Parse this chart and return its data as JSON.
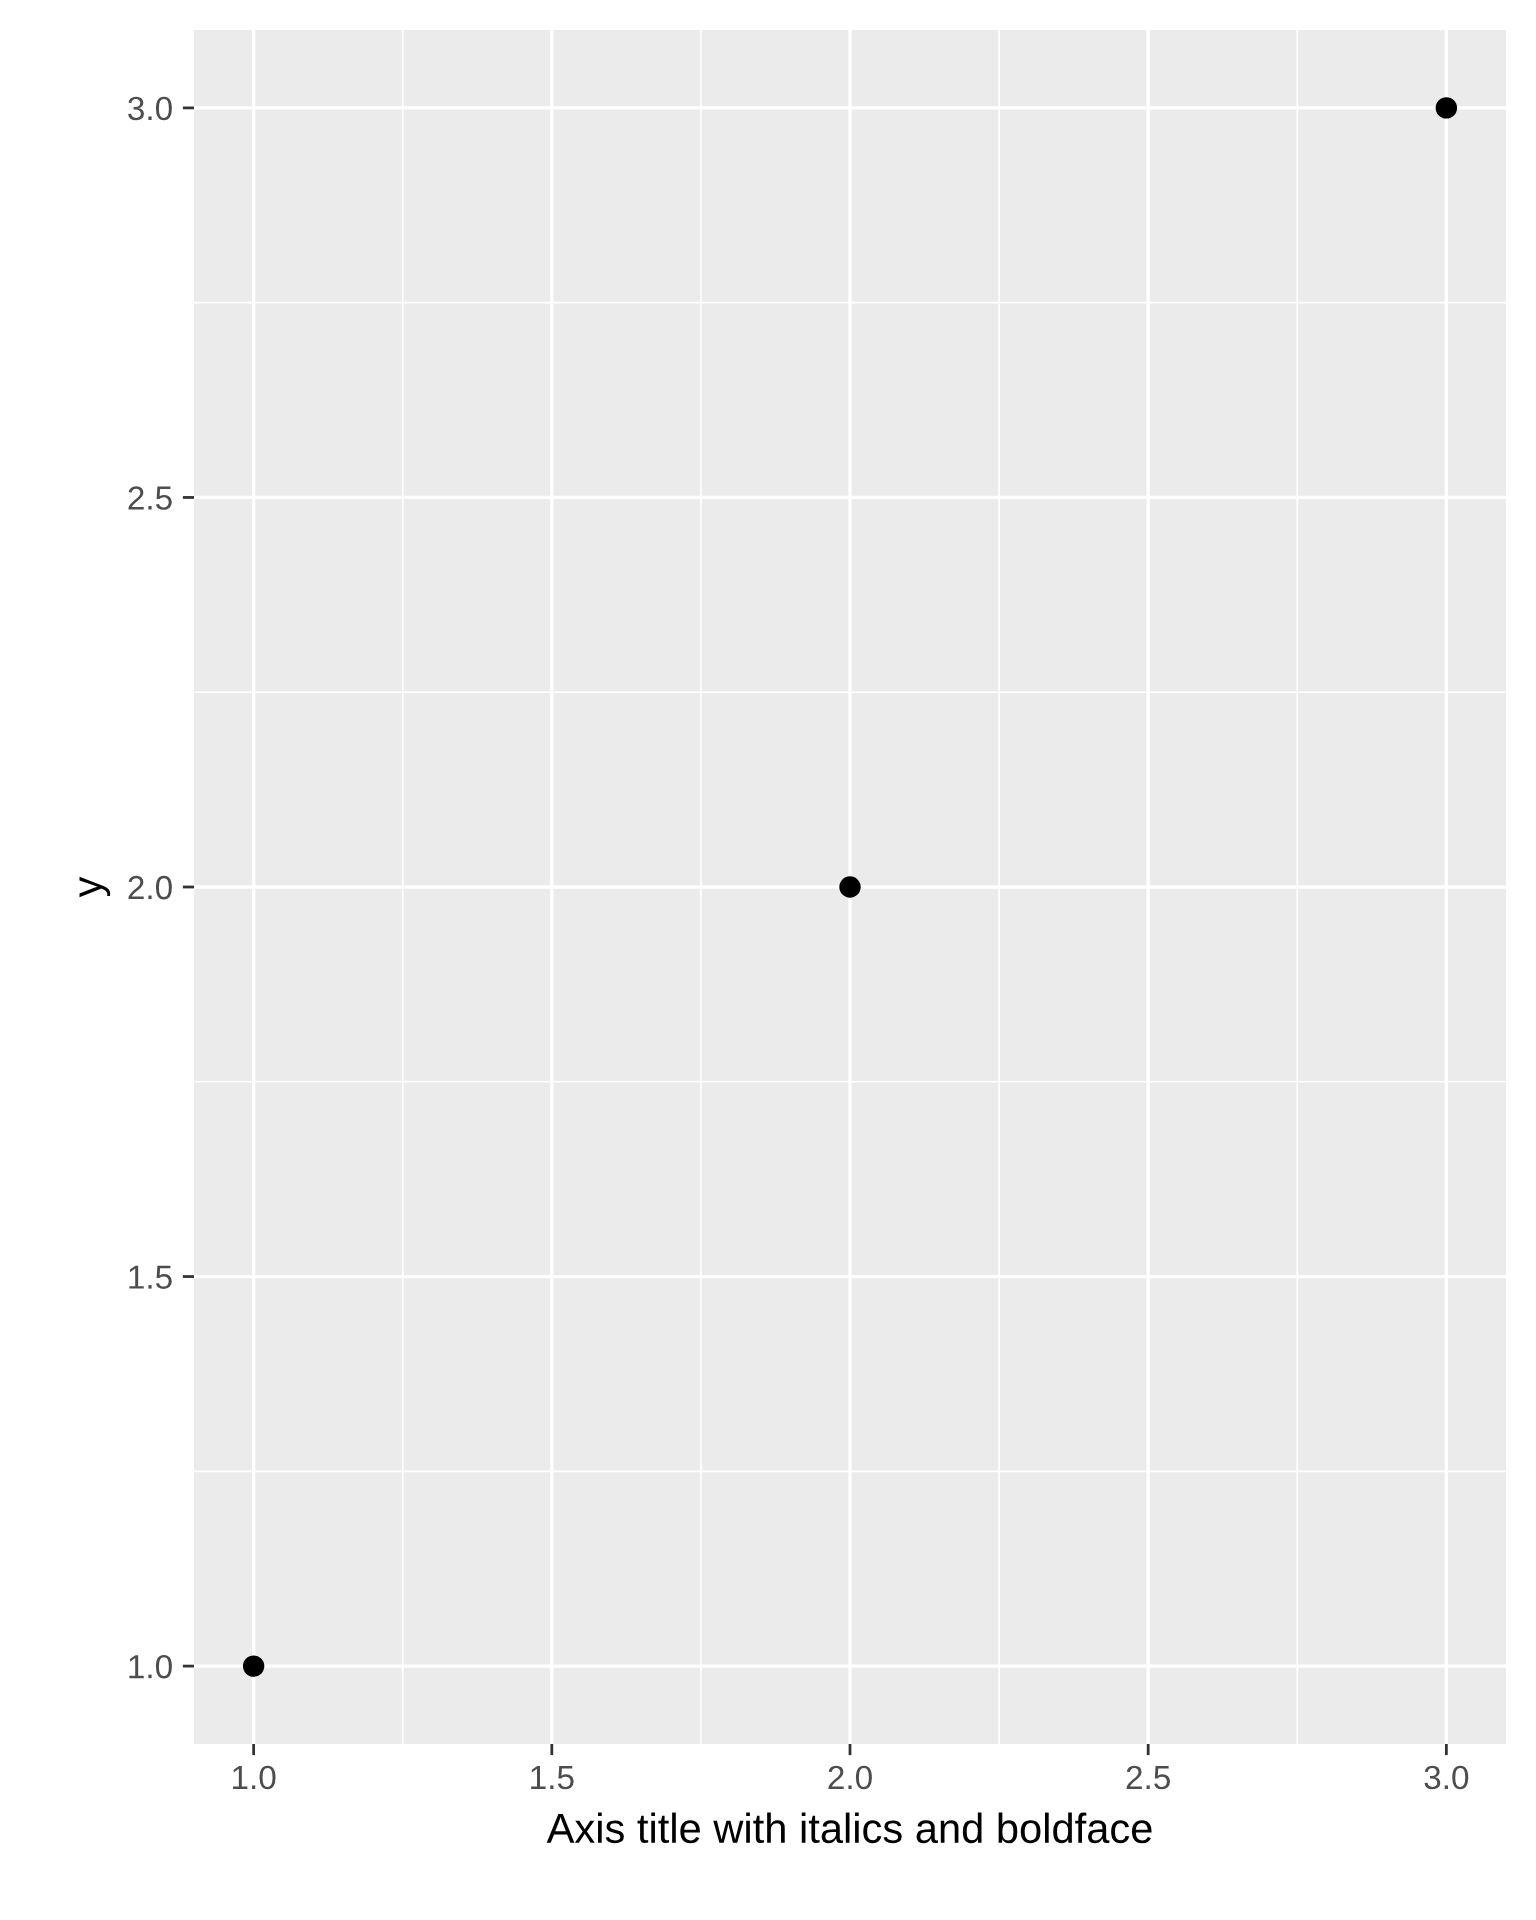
{
  "chart_data": {
    "type": "scatter",
    "xlabel": "Axis title with italics and boldface",
    "ylabel": "y",
    "x": [
      1,
      2,
      3
    ],
    "series": [
      {
        "color": "#000000",
        "values": [
          1,
          2,
          3
        ]
      }
    ],
    "xlim": [
      0.9,
      3.1
    ],
    "ylim": [
      0.9,
      3.1
    ],
    "xticks": [
      {
        "value": 1,
        "label": "1.0"
      },
      {
        "value": 1.5,
        "label": "1.5"
      },
      {
        "value": 2,
        "label": "2.0"
      },
      {
        "value": 2.5,
        "label": "2.5"
      },
      {
        "value": 3,
        "label": "3.0"
      }
    ],
    "yticks": [
      {
        "value": 1,
        "label": "1.0"
      },
      {
        "value": 1.5,
        "label": "1.5"
      },
      {
        "value": 2,
        "label": "2.0"
      },
      {
        "value": 2.5,
        "label": "2.5"
      },
      {
        "value": 3,
        "label": "3.0"
      }
    ],
    "grid": true,
    "marker": "circle"
  }
}
